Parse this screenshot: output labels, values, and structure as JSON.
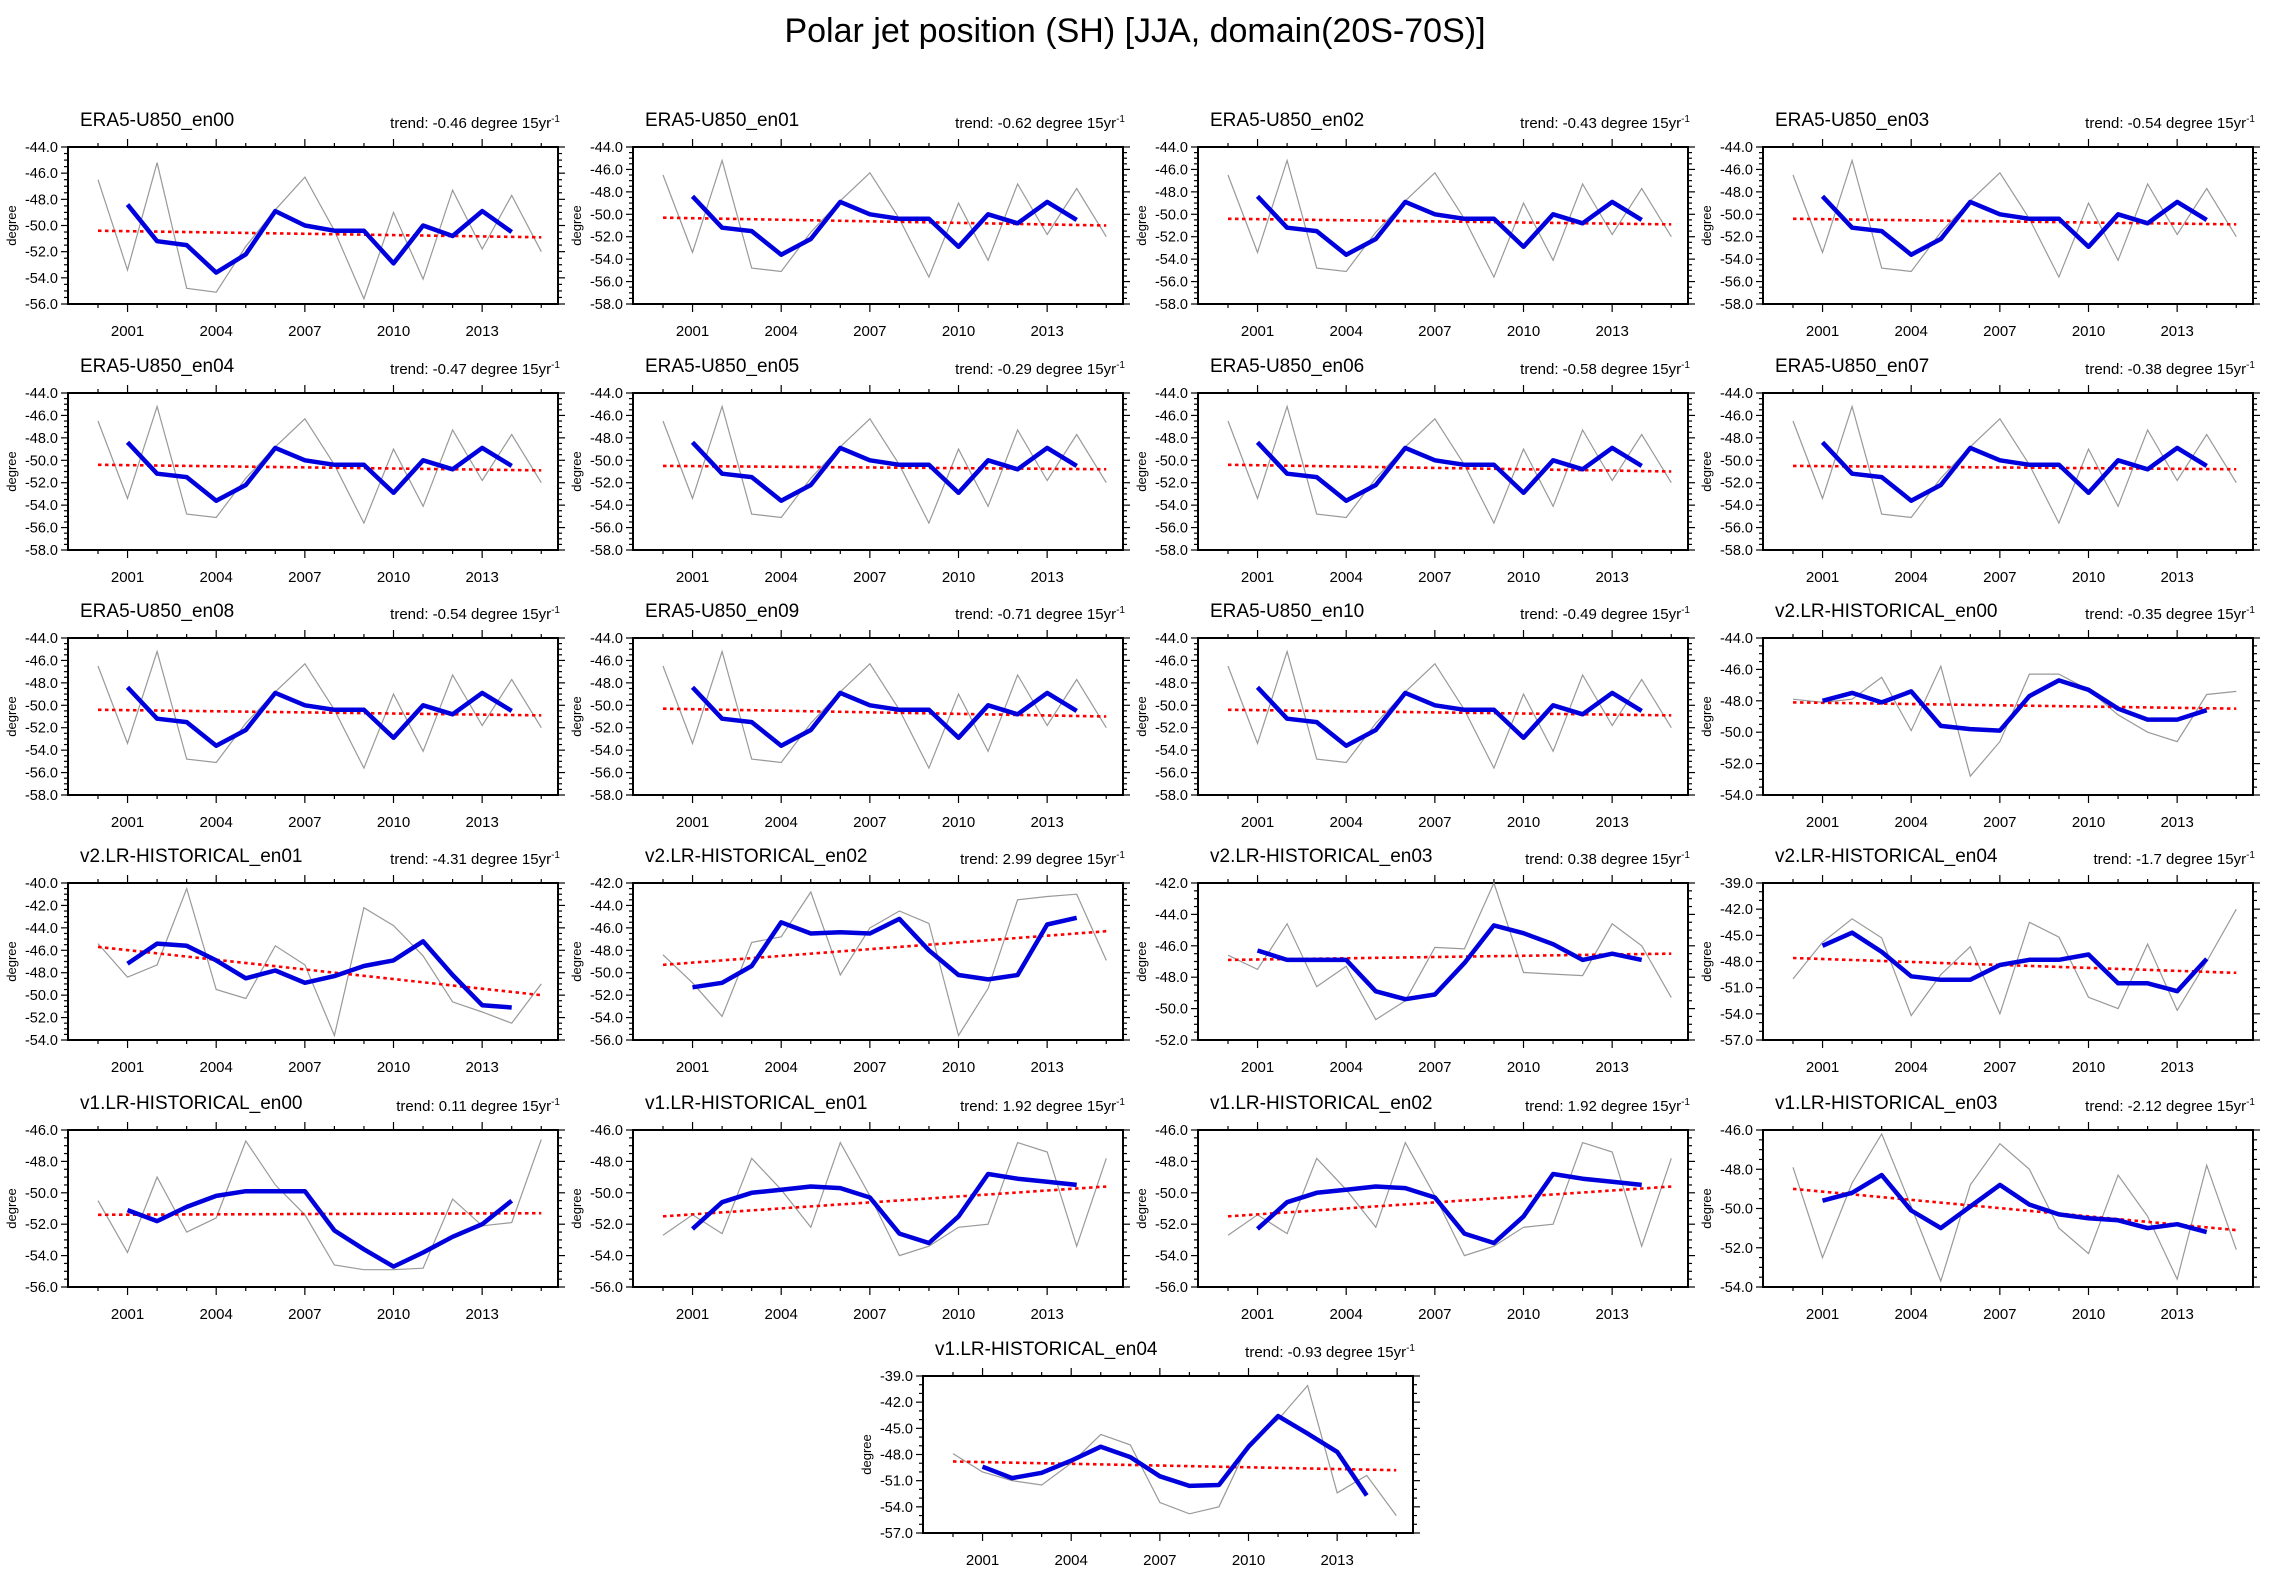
{
  "page_title": "Polar jet position (SH) [JJA, domain(20S-70S)]",
  "axis": {
    "ylabel": "degree",
    "xtick_labels": [
      "2001",
      "2004",
      "2007",
      "2010",
      "2013"
    ],
    "x_years_annual": [
      2000,
      2001,
      2002,
      2003,
      2004,
      2005,
      2006,
      2007,
      2008,
      2009,
      2010,
      2011,
      2012,
      2013,
      2014,
      2015
    ],
    "x_years_smoothed": [
      2001,
      2002,
      2003,
      2004,
      2005,
      2006,
      2007,
      2008,
      2009,
      2010,
      2011,
      2012,
      2013,
      2014
    ]
  },
  "trend_prefix": "trend:",
  "trend_unit": "degree 15yr",
  "trend_sup": "-1",
  "colors": {
    "annual_line": "#999999",
    "smoothed_line": "#0000dd",
    "trend_line": "#ff0000",
    "axis": "#000000"
  },
  "shared_series": {
    "era5_annual": [
      -46.5,
      -53.4,
      -45.2,
      -54.8,
      -55.1,
      -51.6,
      -48.8,
      -46.3,
      -50.4,
      -55.6,
      -49.0,
      -54.1,
      -47.3,
      -51.8,
      -47.7,
      -52.0
    ],
    "era5_smoothed": [
      -48.4,
      -51.2,
      -51.5,
      -53.6,
      -52.2,
      -48.9,
      -50.0,
      -50.4,
      -50.4,
      -52.9,
      -50.0,
      -50.8,
      -48.9,
      -50.5
    ],
    "v1en01_annual": [
      -52.7,
      -51.4,
      -52.6,
      -47.8,
      -49.8,
      -52.2,
      -46.8,
      -50.2,
      -54.0,
      -53.4,
      -52.2,
      -52.0,
      -46.8,
      -47.4,
      -53.4,
      -47.8
    ],
    "v1en01_smoothed": [
      -52.3,
      -50.6,
      -50.0,
      -49.8,
      -49.6,
      -49.7,
      -50.3,
      -52.6,
      -53.2,
      -51.5,
      -48.8,
      -49.1,
      -49.3,
      -49.5
    ]
  },
  "chart_data": [
    {
      "type": "line",
      "title": "ERA5-U850_en00",
      "trend": "-0.46",
      "ylim": [
        -56,
        -44
      ],
      "ystep": 2,
      "annual": "@era5_annual",
      "smoothed": "@era5_smoothed",
      "trend_line": [
        -50.4,
        -50.9
      ]
    },
    {
      "type": "line",
      "title": "ERA5-U850_en01",
      "trend": "-0.62",
      "ylim": [
        -58,
        -44
      ],
      "ystep": 2,
      "annual": "@era5_annual",
      "smoothed": "@era5_smoothed",
      "trend_line": [
        -50.3,
        -51.0
      ]
    },
    {
      "type": "line",
      "title": "ERA5-U850_en02",
      "trend": "-0.43",
      "ylim": [
        -58,
        -44
      ],
      "ystep": 2,
      "annual": "@era5_annual",
      "smoothed": "@era5_smoothed",
      "trend_line": [
        -50.4,
        -50.9
      ]
    },
    {
      "type": "line",
      "title": "ERA5-U850_en03",
      "trend": "-0.54",
      "ylim": [
        -58,
        -44
      ],
      "ystep": 2,
      "annual": "@era5_annual",
      "smoothed": "@era5_smoothed",
      "trend_line": [
        -50.4,
        -50.9
      ]
    },
    {
      "type": "line",
      "title": "ERA5-U850_en04",
      "trend": "-0.47",
      "ylim": [
        -58,
        -44
      ],
      "ystep": 2,
      "annual": "@era5_annual",
      "smoothed": "@era5_smoothed",
      "trend_line": [
        -50.4,
        -50.9
      ]
    },
    {
      "type": "line",
      "title": "ERA5-U850_en05",
      "trend": "-0.29",
      "ylim": [
        -58,
        -44
      ],
      "ystep": 2,
      "annual": "@era5_annual",
      "smoothed": "@era5_smoothed",
      "trend_line": [
        -50.5,
        -50.8
      ]
    },
    {
      "type": "line",
      "title": "ERA5-U850_en06",
      "trend": "-0.58",
      "ylim": [
        -58,
        -44
      ],
      "ystep": 2,
      "annual": "@era5_annual",
      "smoothed": "@era5_smoothed",
      "trend_line": [
        -50.4,
        -51.0
      ]
    },
    {
      "type": "line",
      "title": "ERA5-U850_en07",
      "trend": "-0.38",
      "ylim": [
        -58,
        -44
      ],
      "ystep": 2,
      "annual": "@era5_annual",
      "smoothed": "@era5_smoothed",
      "trend_line": [
        -50.5,
        -50.8
      ]
    },
    {
      "type": "line",
      "title": "ERA5-U850_en08",
      "trend": "-0.54",
      "ylim": [
        -58,
        -44
      ],
      "ystep": 2,
      "annual": "@era5_annual",
      "smoothed": "@era5_smoothed",
      "trend_line": [
        -50.4,
        -50.9
      ]
    },
    {
      "type": "line",
      "title": "ERA5-U850_en09",
      "trend": "-0.71",
      "ylim": [
        -58,
        -44
      ],
      "ystep": 2,
      "annual": "@era5_annual",
      "smoothed": "@era5_smoothed",
      "trend_line": [
        -50.3,
        -51.0
      ]
    },
    {
      "type": "line",
      "title": "ERA5-U850_en10",
      "trend": "-0.49",
      "ylim": [
        -58,
        -44
      ],
      "ystep": 2,
      "annual": "@era5_annual",
      "smoothed": "@era5_smoothed",
      "trend_line": [
        -50.4,
        -50.9
      ]
    },
    {
      "type": "line",
      "title": "v2.LR-HISTORICAL_en00",
      "trend": "-0.35",
      "ylim": [
        -54,
        -44
      ],
      "ystep": 2,
      "annual": [
        -47.9,
        -48.1,
        -47.9,
        -46.5,
        -49.9,
        -45.8,
        -52.8,
        -50.6,
        -46.3,
        -46.3,
        -47.3,
        -48.9,
        -50.0,
        -50.6,
        -47.6,
        -47.4
      ],
      "smoothed": [
        -48.0,
        -47.5,
        -48.1,
        -47.4,
        -49.6,
        -49.8,
        -49.9,
        -47.7,
        -46.7,
        -47.3,
        -48.5,
        -49.2,
        -49.2,
        -48.6
      ],
      "trend_line": [
        -48.1,
        -48.5
      ]
    },
    {
      "type": "line",
      "title": "v2.LR-HISTORICAL_en01",
      "trend": "-4.31",
      "ylim": [
        -54,
        -40
      ],
      "ystep": 2,
      "annual": [
        -45.4,
        -48.4,
        -47.3,
        -40.5,
        -49.5,
        -50.3,
        -45.6,
        -47.3,
        -53.6,
        -42.2,
        -43.8,
        -46.5,
        -50.6,
        -51.5,
        -52.5,
        -49.0
      ],
      "smoothed": [
        -47.2,
        -45.4,
        -45.6,
        -46.9,
        -48.5,
        -47.8,
        -48.9,
        -48.3,
        -47.4,
        -46.9,
        -45.2,
        -48.2,
        -50.9,
        -51.1
      ],
      "trend_line": [
        -45.7,
        -50.0
      ]
    },
    {
      "type": "line",
      "title": "v2.LR-HISTORICAL_en02",
      "trend": "2.99",
      "ylim": [
        -56,
        -42
      ],
      "ystep": 2,
      "annual": [
        -48.4,
        -50.9,
        -53.9,
        -47.3,
        -46.8,
        -42.8,
        -50.2,
        -46.0,
        -44.5,
        -45.6,
        -55.6,
        -51.4,
        -43.5,
        -43.2,
        -43.0,
        -48.9
      ],
      "smoothed": [
        -51.3,
        -50.9,
        -49.4,
        -45.5,
        -46.5,
        -46.4,
        -46.5,
        -45.2,
        -48.0,
        -50.2,
        -50.6,
        -50.2,
        -45.7,
        -45.1
      ],
      "trend_line": [
        -49.3,
        -46.3
      ]
    },
    {
      "type": "line",
      "title": "v2.LR-HISTORICAL_en03",
      "trend": "0.38",
      "ylim": [
        -52,
        -42
      ],
      "ystep": 2,
      "annual": [
        -46.6,
        -47.5,
        -44.6,
        -48.6,
        -47.3,
        -50.7,
        -49.5,
        -46.1,
        -46.2,
        -42.0,
        -47.7,
        -47.8,
        -47.9,
        -44.6,
        -46.0,
        -49.3
      ],
      "smoothed": [
        -46.3,
        -46.9,
        -46.9,
        -46.9,
        -48.9,
        -49.4,
        -49.1,
        -47.1,
        -44.7,
        -45.2,
        -45.9,
        -46.9,
        -46.5,
        -46.9
      ],
      "trend_line": [
        -46.9,
        -46.5
      ]
    },
    {
      "type": "line",
      "title": "v2.LR-HISTORICAL_en04",
      "trend": "-1.7",
      "ylim": [
        -57,
        -39
      ],
      "ystep": 3,
      "annual": [
        -50.0,
        -45.8,
        -43.1,
        -45.3,
        -54.2,
        -49.5,
        -46.3,
        -54.0,
        -43.5,
        -45.2,
        -52.1,
        -53.4,
        -46.0,
        -53.6,
        -48.0,
        -42.0
      ],
      "smoothed": [
        -46.2,
        -44.7,
        -46.9,
        -49.7,
        -50.1,
        -50.1,
        -48.4,
        -47.8,
        -47.8,
        -47.2,
        -50.5,
        -50.5,
        -51.4,
        -47.7
      ],
      "trend_line": [
        -47.6,
        -49.3
      ]
    },
    {
      "type": "line",
      "title": "v1.LR-HISTORICAL_en00",
      "trend": "0.11",
      "ylim": [
        -56,
        -46
      ],
      "ystep": 2,
      "annual": [
        -50.5,
        -53.8,
        -49.0,
        -52.5,
        -51.6,
        -46.7,
        -49.5,
        -51.4,
        -54.6,
        -54.9,
        -54.9,
        -54.8,
        -50.4,
        -52.1,
        -51.9,
        -46.6
      ],
      "smoothed": [
        -51.1,
        -51.8,
        -50.9,
        -50.2,
        -49.9,
        -49.9,
        -49.9,
        -52.4,
        -53.6,
        -54.7,
        -53.8,
        -52.8,
        -52.0,
        -50.5
      ],
      "trend_line": [
        -51.4,
        -51.3
      ]
    },
    {
      "type": "line",
      "title": "v1.LR-HISTORICAL_en01",
      "trend": "1.92",
      "ylim": [
        -56,
        -46
      ],
      "ystep": 2,
      "annual": "@v1en01_annual",
      "smoothed": "@v1en01_smoothed",
      "trend_line": [
        -51.5,
        -49.6
      ]
    },
    {
      "type": "line",
      "title": "v1.LR-HISTORICAL_en02",
      "trend": "1.92",
      "ylim": [
        -56,
        -46
      ],
      "ystep": 2,
      "annual": "@v1en01_annual",
      "smoothed": "@v1en01_smoothed",
      "trend_line": [
        -51.5,
        -49.6
      ]
    },
    {
      "type": "line",
      "title": "v1.LR-HISTORICAL_en03",
      "trend": "-2.12",
      "ylim": [
        -54,
        -46
      ],
      "ystep": 2,
      "annual": [
        -47.9,
        -52.5,
        -48.7,
        -46.2,
        -49.9,
        -53.7,
        -48.8,
        -46.7,
        -48.0,
        -51.0,
        -52.3,
        -48.3,
        -50.4,
        -53.6,
        -47.8,
        -52.1
      ],
      "smoothed": [
        -49.6,
        -49.2,
        -48.3,
        -50.1,
        -51.0,
        -49.9,
        -48.8,
        -49.8,
        -50.3,
        -50.5,
        -50.6,
        -51.0,
        -50.8,
        -51.2
      ],
      "trend_line": [
        -49.0,
        -51.1
      ]
    },
    {
      "type": "line",
      "title": "v1.LR-HISTORICAL_en04",
      "trend": "-0.93",
      "ylim": [
        -57,
        -39
      ],
      "ystep": 3,
      "annual": [
        -47.9,
        -50.0,
        -51.0,
        -51.5,
        -49.0,
        -45.7,
        -46.9,
        -53.5,
        -54.8,
        -54.0,
        -46.8,
        -44.0,
        -40.1,
        -52.4,
        -50.4,
        -55.0
      ],
      "smoothed": [
        -49.4,
        -50.7,
        -50.1,
        -48.7,
        -47.1,
        -48.3,
        -50.5,
        -51.6,
        -51.5,
        -47.1,
        -43.6,
        -45.6,
        -47.7,
        -52.7
      ],
      "trend_line": [
        -48.8,
        -49.8
      ]
    }
  ]
}
